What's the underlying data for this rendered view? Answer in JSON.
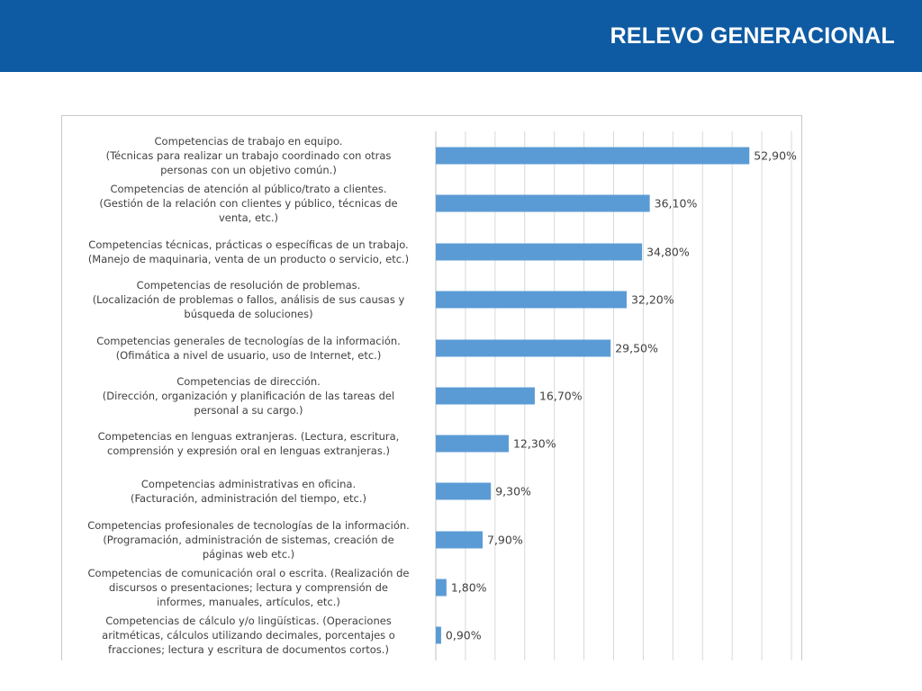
{
  "header": {
    "title": "RELEVO GENERACIONAL"
  },
  "colors": {
    "header_bg": "#0e5ba3",
    "bar": "#5b9bd5",
    "grid": "#d9d9d9"
  },
  "chart_data": {
    "type": "bar",
    "orientation": "horizontal",
    "xlim": [
      0,
      60
    ],
    "grid": true,
    "categories": [
      [
        "Competencias de trabajo en equipo.",
        "(Técnicas para realizar un trabajo coordinado con otras",
        "personas con un objetivo común.)"
      ],
      [
        "Competencias de atención al público/trato a clientes.",
        "(Gestión de la relación con clientes y público, técnicas de",
        "venta, etc.)"
      ],
      [
        "Competencias técnicas, prácticas o específicas de un trabajo.",
        "(Manejo de maquinaria, venta de un producto o servicio, etc.)"
      ],
      [
        "Competencias de resolución de problemas.",
        "(Localización de problemas o fallos, análisis de sus causas y",
        "búsqueda de soluciones)"
      ],
      [
        "Competencias generales de tecnologías de la información.",
        "(Ofimática a nivel de usuario, uso de Internet, etc.)"
      ],
      [
        "Competencias de dirección.",
        "(Dirección, organización y planificación de las tareas del",
        "personal a su cargo.)"
      ],
      [
        "Competencias en lenguas extranjeras. (Lectura, escritura,",
        "comprensión y expresión oral en lenguas extranjeras.)"
      ],
      [
        "Competencias administrativas en oficina.",
        "(Facturación, administración del tiempo, etc.)"
      ],
      [
        "Competencias profesionales de tecnologías de la información.",
        "(Programación, administración de sistemas, creación de",
        "páginas web etc.)"
      ],
      [
        "Competencias de comunicación oral o escrita. (Realización de",
        "discursos o presentaciones; lectura y comprensión de",
        "informes, manuales, artículos, etc.)"
      ],
      [
        "Competencias de cálculo y/o lingüísticas. (Operaciones",
        "aritméticas, cálculos utilizando decimales, porcentajes o",
        "fracciones; lectura y escritura de documentos cortos.)"
      ]
    ],
    "values": [
      52.9,
      36.1,
      34.8,
      32.2,
      29.5,
      16.7,
      12.3,
      9.3,
      7.9,
      1.8,
      0.9
    ],
    "value_labels": [
      "52,90%",
      "36,10%",
      "34,80%",
      "32,20%",
      "29,50%",
      "16,70%",
      "12,30%",
      "9,30%",
      "7,90%",
      "1,80%",
      "0,90%"
    ]
  }
}
